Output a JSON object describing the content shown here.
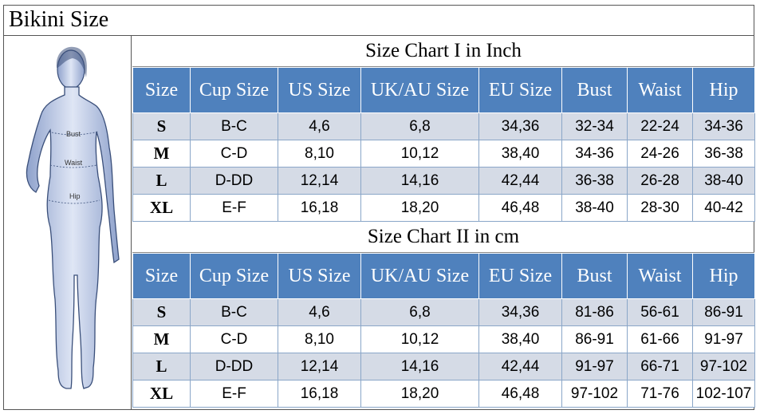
{
  "title": "Bikini Size",
  "figure": {
    "labels": [
      "Bust",
      "Waist",
      "Hip"
    ]
  },
  "headers": [
    "Size",
    "Cup Size",
    "US Size",
    "UK/AU Size",
    "EU Size",
    "Bust",
    "Waist",
    "Hip"
  ],
  "chart1": {
    "title": "Size Chart I  in Inch",
    "rows": [
      [
        "S",
        "B-C",
        "4,6",
        "6,8",
        "34,36",
        "32-34",
        "22-24",
        "34-36"
      ],
      [
        "M",
        "C-D",
        "8,10",
        "10,12",
        "38,40",
        "34-36",
        "24-26",
        "36-38"
      ],
      [
        "L",
        "D-DD",
        "12,14",
        "14,16",
        "42,44",
        "36-38",
        "26-28",
        "38-40"
      ],
      [
        "XL",
        "E-F",
        "16,18",
        "18,20",
        "46,48",
        "38-40",
        "28-30",
        "40-42"
      ]
    ]
  },
  "chart2": {
    "title": "Size Chart II  in cm",
    "rows": [
      [
        "S",
        "B-C",
        "4,6",
        "6,8",
        "34,36",
        "81-86",
        "56-61",
        "86-91"
      ],
      [
        "M",
        "C-D",
        "8,10",
        "10,12",
        "38,40",
        "86-91",
        "61-66",
        "91-97"
      ],
      [
        "L",
        "D-DD",
        "12,14",
        "14,16",
        "42,44",
        "91-97",
        "66-71",
        "97-102"
      ],
      [
        "XL",
        "E-F",
        "16,18",
        "18,20",
        "46,48",
        "97-102",
        "71-76",
        "102-107"
      ]
    ]
  }
}
